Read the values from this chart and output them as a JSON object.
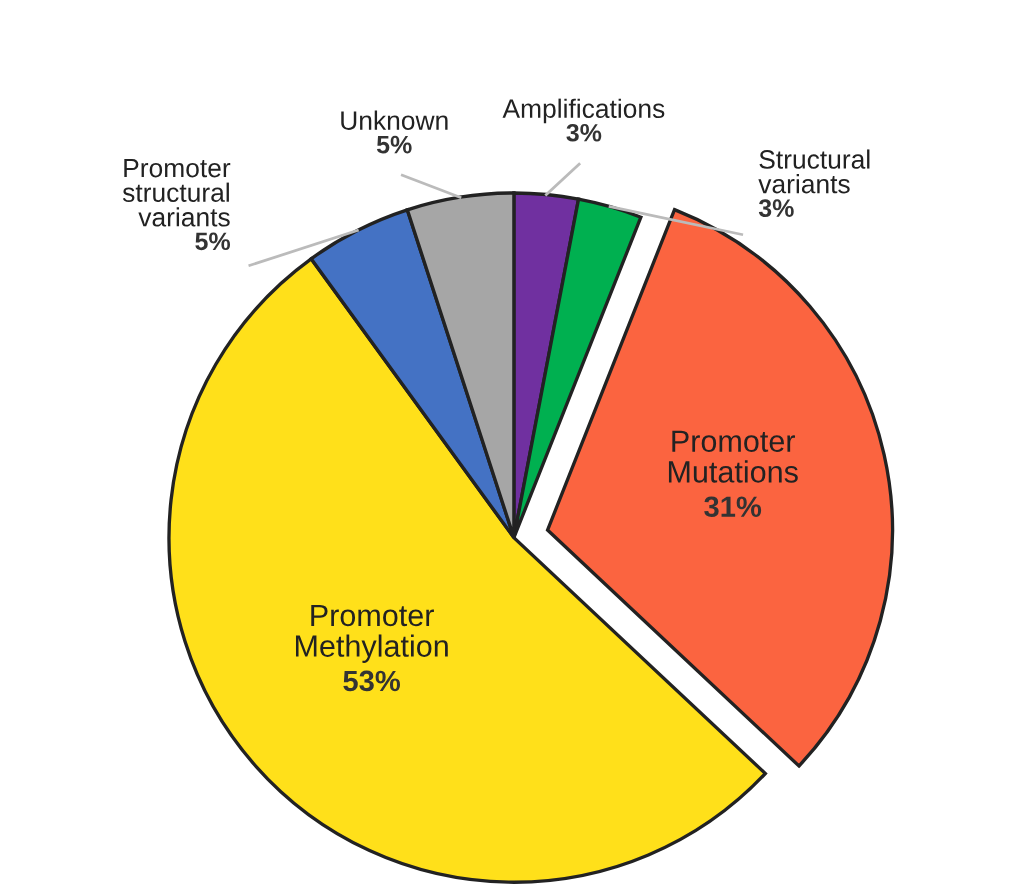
{
  "chart_data": {
    "type": "pie",
    "categories": [
      "Amplifications",
      "Structural\nvariants",
      "Promoter\nMutations",
      "Promoter\nMethylation",
      "Promoter\nstructural\nvariants",
      "Unknown"
    ],
    "values": [
      3,
      3,
      31,
      53,
      5,
      5
    ],
    "value_labels": [
      "3%",
      "3%",
      "31%",
      "53%",
      "5%",
      "5%"
    ],
    "colors": [
      "#7030a0",
      "#00b050",
      "#fb6440",
      "#ffe01a",
      "#4472c4",
      "#a6a6a6"
    ],
    "legend": false
  }
}
